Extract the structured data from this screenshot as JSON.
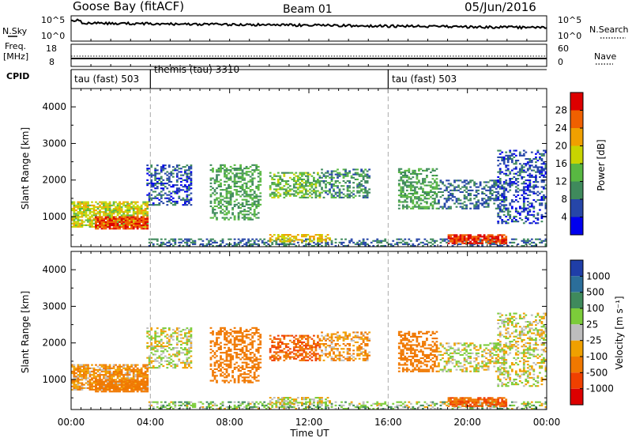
{
  "header": {
    "station": "Goose Bay (fitACF)",
    "beam": "Beam 01",
    "date": "05/Jun/2016"
  },
  "sky_panel": {
    "left_label": "N.Sky",
    "left_ticks": [
      "10^5",
      "10^0"
    ],
    "right_ticks": [
      "10^5",
      "10^0"
    ],
    "right_label": "N.Search"
  },
  "freq_panel": {
    "left_label_1": "Freq.",
    "left_label_2": "[MHz]",
    "left_ticks": [
      "18",
      "8"
    ],
    "right_ticks": [
      "60",
      "0"
    ],
    "right_label": "Nave"
  },
  "cpid_panel": {
    "label": "CPID",
    "modes": [
      {
        "text": "tau (fast) 503",
        "start_hour": 0
      },
      {
        "text": "themis (tau) 3310",
        "start_hour": 4
      },
      {
        "text": "tau (fast) 503",
        "start_hour": 16
      }
    ]
  },
  "axes": {
    "x_ticks": [
      "00:00",
      "04:00",
      "08:00",
      "12:00",
      "16:00",
      "20:00",
      "00:00"
    ],
    "x_label": "Time UT",
    "y_label": "Slant Range [km]",
    "y_ticks": [
      "1000",
      "2000",
      "3000",
      "4000"
    ]
  },
  "power_colorbar": {
    "title": "Power [dB]",
    "ticks": [
      "4",
      "8",
      "12",
      "16",
      "20",
      "24",
      "28"
    ],
    "colors": [
      "#0000ee",
      "#2646a8",
      "#3f8a5c",
      "#58b842",
      "#c8d400",
      "#f0a000",
      "#f06000",
      "#dd0000"
    ]
  },
  "velocity_colorbar": {
    "title": "Velocity [m s⁻¹]",
    "ticks": [
      "1000",
      "500",
      "100",
      "25",
      "-25",
      "-100",
      "-500",
      "-1000"
    ],
    "colors": [
      "#1f3ea8",
      "#2b6e9a",
      "#3f8a5c",
      "#7ccc3a",
      "#bdbdbd",
      "#f0a000",
      "#f07800",
      "#f04000",
      "#dd0000"
    ]
  },
  "chart_data": {
    "type": "heatmap",
    "title": "Goose Bay (fitACF)  Beam 01  05/Jun/2016",
    "xlabel": "Time UT",
    "ylabel": "Slant Range [km]",
    "xlim": [
      0,
      24
    ],
    "ylim": [
      180,
      4500
    ],
    "panels": [
      "Power [dB]",
      "Velocity [m s⁻¹]"
    ],
    "scatter_regions": [
      {
        "t0": 0.0,
        "t1": 3.9,
        "r0": 700,
        "r1": 1400,
        "power": 18,
        "velocity": -100,
        "density": 0.75
      },
      {
        "t0": 1.2,
        "t1": 3.9,
        "r0": 650,
        "r1": 1000,
        "power": 28,
        "velocity": -300,
        "density": 0.8
      },
      {
        "t0": 3.8,
        "t1": 6.0,
        "r0": 1300,
        "r1": 2400,
        "power": 6,
        "velocity": 0,
        "density": 0.45
      },
      {
        "t0": 7.0,
        "t1": 9.5,
        "r0": 900,
        "r1": 2400,
        "power": 12,
        "velocity": -300,
        "density": 0.45
      },
      {
        "t0": 10.0,
        "t1": 12.5,
        "r0": 1500,
        "r1": 2200,
        "power": 14,
        "velocity": -500,
        "density": 0.5
      },
      {
        "t0": 12.5,
        "t1": 15.0,
        "r0": 1500,
        "r1": 2300,
        "power": 10,
        "velocity": -100,
        "density": 0.4
      },
      {
        "t0": 16.5,
        "t1": 18.5,
        "r0": 1200,
        "r1": 2300,
        "power": 12,
        "velocity": -300,
        "density": 0.5
      },
      {
        "t0": 18.5,
        "t1": 22.0,
        "r0": 1200,
        "r1": 2000,
        "power": 8,
        "velocity": 0,
        "density": 0.4
      },
      {
        "t0": 21.5,
        "t1": 24.0,
        "r0": 800,
        "r1": 2800,
        "power": 6,
        "velocity": 0,
        "density": 0.4
      },
      {
        "t0": 3.9,
        "t1": 24.0,
        "r0": 180,
        "r1": 400,
        "power": 8,
        "velocity": 50,
        "density": 0.4
      },
      {
        "t0": 19.0,
        "t1": 22.0,
        "r0": 250,
        "r1": 500,
        "power": 28,
        "velocity": -500,
        "density": 0.8
      },
      {
        "t0": 10.0,
        "t1": 13.0,
        "r0": 300,
        "r1": 500,
        "power": 20,
        "velocity": 0,
        "density": 0.6
      }
    ]
  }
}
